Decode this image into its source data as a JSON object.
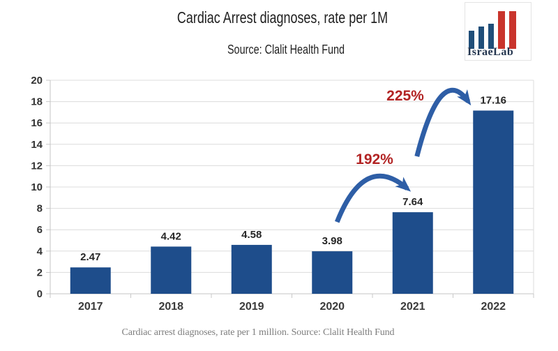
{
  "header": {
    "title": "Cardiac Arrest diagnoses, rate per 1M",
    "subtitle": "Source: Clalit Health Fund"
  },
  "logo": {
    "text": "IsraeLab",
    "blue": "#1f4e79",
    "red": "#c9342c"
  },
  "chart_data": {
    "type": "bar",
    "title": "Cardiac Arrest diagnoses, rate per 1M",
    "source": "Clalit Health Fund",
    "categories": [
      "2017",
      "2018",
      "2019",
      "2020",
      "2021",
      "2022"
    ],
    "values": [
      2.47,
      4.42,
      4.58,
      3.98,
      7.64,
      17.16
    ],
    "value_labels": [
      "2.47",
      "4.42",
      "4.58",
      "3.98",
      "7.64",
      "17.16"
    ],
    "ylim": [
      0,
      20
    ],
    "yticks": [
      0,
      2,
      4,
      6,
      8,
      10,
      12,
      14,
      16,
      18,
      20
    ],
    "grid": true,
    "legend": "none",
    "bar_color": "#1e4d8b",
    "arrow_color": "#2e5ea6",
    "annotations": [
      {
        "text": "192%",
        "from": "2020",
        "to": "2021",
        "color": "#b22424"
      },
      {
        "text": "225%",
        "from": "2021",
        "to": "2022",
        "color": "#b22424"
      }
    ]
  },
  "caption": {
    "text": "Cardiac arrest diagnoses, rate per 1 million. Source: Clalit Health Fund"
  }
}
